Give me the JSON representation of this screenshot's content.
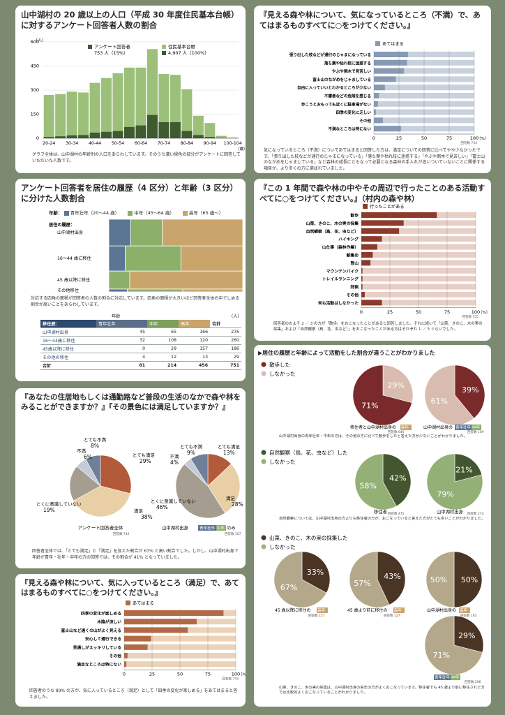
{
  "colors": {
    "blue": "#5b7693",
    "green": "#8cb06a",
    "tan": "#c9a56b",
    "dark_green": "#3f5a2f",
    "light_green": "#9cc07a",
    "brown_red": "#7a2a2a",
    "pink": "#d9bcb0",
    "rust": "#b25a3a",
    "cream": "#e8cfa5",
    "grey": "#a49d90",
    "light_blue_grey": "#c2cbd6",
    "slate": "#6f7f99",
    "bar_blue": "#8699b5",
    "bar_track": "#c8d1dd",
    "orange_bar": "#b26a46",
    "orange_track": "#ecd2b6",
    "brown_bar": "#8d3a2a",
    "brown_track": "#e8cfc6",
    "forest": "#44562f",
    "sage": "#93b077",
    "choc": "#4a3424",
    "khaki": "#b3a88a"
  },
  "p1": {
    "title": "山中湖村の 20 歳以上の人口（平成 30 年度住民基本台帳）に対するアンケート回答者人数の割合",
    "ylabel": "（人）",
    "xlabel": "（歳）",
    "legend_a": "アンケート回答者",
    "legend_a_val": "753 人（15%）",
    "legend_b": "住民基本台帳",
    "legend_b_val": "4,907 人（100%）",
    "note": "グラフ全体は、山中湖村の年齢別の人口をあらわしています。そのうち濃い緑色の部分がアンケートに回答していただいた人数です。"
  },
  "p2": {
    "title": "『見える森や林について、気になっているところ（不満）で、あてはまるものすべてに○をつけてください。』",
    "legend": "あてはまる",
    "axis_unit": "（%）",
    "respondents": "回答数 734",
    "note": "気になっているところ（不満）についてあてはまると回答した方は、満足についての回答に比べてやや少なかったです。「張り出した枝などが通行のじゃまになっている」「落ち葉や枯れ枝に迷惑する」「やぶや倒木で見苦しい」「富士山のながめをじゃましている」など森林の成長にともなって必要となる森林の手入れが追いついていないことに関係する項目が、より多くの方に選ばれていました。"
  },
  "p3": {
    "title": "アンケート回答者を居住の履歴（4 区分）と年齢（3 区分）に分けた人数割合",
    "age_label": "年齢：",
    "age_young": "青年壮年（20〜44 歳）",
    "age_mid": "中年（45〜64 歳）",
    "age_old": "高年（65 歳〜）",
    "res_label": "居住の履歴：",
    "rows": [
      "山中湖村出身",
      "16〜44 歳に移住",
      "45 歳以降に移住",
      "その他移住"
    ],
    "note": "対応する四角の面積が回答者の人数の割合に対応しています。四角の面積が大きいほど回答者全体の中でしめる割合が高いことをあらわしています。",
    "table": {
      "age_head": "年齢",
      "unit": "（人）",
      "res_head": "移住歴：",
      "cols": [
        "青年壮年",
        "中年",
        "高年",
        "合計"
      ],
      "rows": [
        {
          "name": "山中湖村出身",
          "v": [
            "45",
            "65",
            "166",
            "276"
          ]
        },
        {
          "name": "16〜44歳に移住",
          "v": [
            "32",
            "108",
            "120",
            "260"
          ]
        },
        {
          "name": "45歳以降に移住",
          "v": [
            "0",
            "29",
            "157",
            "186"
          ]
        },
        {
          "name": "その他の移住",
          "v": [
            "4",
            "12",
            "13",
            "29"
          ]
        },
        {
          "name": "合計",
          "v": [
            "81",
            "214",
            "456",
            "751"
          ]
        }
      ]
    }
  },
  "p4": {
    "title": "『この 1 年間で森や林の中やその周辺で行ったことのある活動すべてに○をつけてください。』（村内の森や林）",
    "legend": "行ったことがある",
    "axis_unit": "（%）",
    "respondents": "回答数 755",
    "note": "回答者のおよそ 2 ／ 3 の方が「散歩」をおこなったことがあると回答しました。それに続いて「山菜、きのこ、木の実の採集」および「自然観察（鳥、花、虫など）」をおこなったことがある方はそれぞれ 1 ／ 3 ぐらいでした。"
  },
  "p5": {
    "title": "▶居住の履歴と年齢によって活動をした割合が違うことがわかりました",
    "g1_a": "散歩した",
    "g1_b": "しなかった",
    "g2_a": "自然観察（鳥、花、虫など）した",
    "g2_b": "しなかった",
    "g3_a": "山菜、きのこ、木の実の採集した",
    "g3_b": "しなかった",
    "pie1_pre": "移住者と山中湖村出身の",
    "pie1_badge": "高年",
    "pie1_n": "回答数 640",
    "pie2_pre": "山中湖村出身の",
    "pie2_badge1": "青年壮年",
    "pie2_badge2": "中年",
    "pie2_n": "回答数 109",
    "note1": "山中湖村出身の青年壮年・中年の方は、その他の方に比べて散歩をしたと答えた方が少ないことがわかりました。",
    "pie3_label": "移住者",
    "pie3_n": "回答数 475",
    "pie4_label": "山中湖村出身",
    "pie4_n": "回答数 274",
    "note2": "自然観察については、山中湖村出身の方よりも移住者の方が、おこなっていると答えた方がとても多いことがわかりました。",
    "pie5_pre": "45 歳以降に移住の",
    "pie5_badge": "高年",
    "pie5_n": "回答数 157",
    "pie6_pre": "45 歳より前に移住の",
    "pie6_badge": "高年",
    "pie6_n": "回答数 127",
    "pie7_pre": "山中湖村出身の",
    "pie7_badge": "高年",
    "pie7_n": "回答数 165",
    "pie8_badge1": "青年壮年",
    "pie8_badge2": "中年",
    "pie8_n": "回答数 296",
    "note3": "山菜、きのこ、木の実の採集は、山中湖村出身の高年の方がよくおこなっています。移住者でも 45 歳より前に移住された方では比較的よくおこなっていることがわかりました。"
  },
  "p6": {
    "title": "『あなたの住居地もしくは通勤路など普段の生活のなかで森や林をみることができますか？』『その景色には満足していますか？』",
    "pie1_caption": "アンケート回答者全体",
    "pie1_n": "回答数 742",
    "pie2_pre": "山中湖村出身",
    "pie2_badge1": "青年壮年",
    "pie2_badge2": "中年",
    "pie2_post": "のみ",
    "pie2_n": "回答数 107",
    "note": "回答者全体では、「とても満足」と「満足」を加えた割合が 67% と高い割合でした。しかし、山中湖村出身で年齢が青年・壮年・中年の方の回答では、その割合が 41% となっていました。"
  },
  "p7": {
    "title": "『見える森や林について、気に入っているところ（満足）で、あてはまるものすべてに○をつけてください。』",
    "legend": "あてはまる",
    "axis_unit": "（%）",
    "respondents": "回答数 743",
    "note": "回答者のうち 89% の方が、気に入っているところ（満足）として「四季の変化が楽しめる」をあてはまると答えました。"
  },
  "chart_data": [
    {
      "type": "bar",
      "title": "山中湖村の 20 歳以上の人口（平成 30 年度住民基本台帳）に対するアンケート回答者人数の割合",
      "xlabel": "（歳）",
      "ylabel": "（人）",
      "categories": [
        "20-24",
        "25-29",
        "30-34",
        "35-39",
        "40-44",
        "45-49",
        "50-54",
        "55-59",
        "60-64",
        "65-69",
        "70-74",
        "75-79",
        "80-84",
        "85-89",
        "90-94",
        "95-99",
        "100-104"
      ],
      "tick_labels": [
        "20-24",
        "30-34",
        "40-44",
        "50-54",
        "60-64",
        "70-74",
        "80-84",
        "90-94",
        "100-104"
      ],
      "y_ticks": [
        0,
        150,
        300,
        450,
        600
      ],
      "ylim": [
        0,
        600
      ],
      "series": [
        {
          "name": "住民基本台帳",
          "values": [
            270,
            275,
            290,
            285,
            345,
            375,
            405,
            440,
            440,
            555,
            400,
            395,
            305,
            140,
            95,
            15,
            5
          ]
        },
        {
          "name": "アンケート回答者",
          "values": [
            8,
            12,
            18,
            20,
            35,
            40,
            45,
            70,
            80,
            145,
            100,
            100,
            45,
            20,
            8,
            2,
            0
          ]
        }
      ]
    },
    {
      "type": "bar",
      "orientation": "horizontal",
      "categories": [
        "張り出した枝などが通行のじゃまになっている",
        "落ち葉や枯れ枝に迷惑する",
        "やぶや倒木で見苦しい",
        "富士山のながめをじゃましている",
        "自由に入っていいとわかるところが少ない",
        "不審者などの危険を感じる",
        "歩こうとおもっても近くに駐車場がない",
        "四季の変化に乏しい",
        "その他",
        "不満なところは特にない"
      ],
      "series": [
        {
          "name": "あてはまる",
          "values": [
            34,
            33,
            30,
            22,
            11,
            5,
            4,
            2,
            9,
            27
          ]
        }
      ],
      "x_ticks": [
        0,
        25,
        50,
        75,
        100
      ],
      "xlim": [
        0,
        100
      ],
      "unit": "%"
    },
    {
      "type": "bar",
      "orientation": "horizontal",
      "categories": [
        "散歩",
        "山菜、きのこ、木の実の採集",
        "自然観察（鳥、花、虫など）",
        "ハイキング",
        "山仕事（森林作業）",
        "薪集め",
        "登山",
        "マウンテンバイク",
        "トレイルランニング",
        "狩猟",
        "その他",
        "何も活動はしなかった"
      ],
      "series": [
        {
          "name": "行ったことがある",
          "values": [
            66,
            37,
            33,
            18,
            14,
            10,
            8,
            1,
            1,
            1,
            3,
            18
          ]
        }
      ],
      "x_ticks": [
        0,
        25,
        50,
        75,
        100
      ],
      "xlim": [
        0,
        100
      ],
      "unit": "%"
    },
    {
      "type": "bar",
      "orientation": "horizontal",
      "categories": [
        "四季の変化が楽しめる",
        "木陰が涼しい",
        "富士山など遠くの山がよく見える",
        "安心して通行できる",
        "見通しがスッキリしている",
        "その他",
        "満足なところは特にない"
      ],
      "series": [
        {
          "name": "あてはまる",
          "values": [
            89,
            65,
            57,
            24,
            21,
            3,
            2
          ]
        }
      ],
      "x_ticks": [
        0,
        25,
        50,
        75,
        100
      ],
      "xlim": [
        0,
        100
      ],
      "unit": "%"
    },
    {
      "type": "pie",
      "caption": "アンケート回答者全体",
      "slices": [
        {
          "label": "とても満足",
          "value": 29
        },
        {
          "label": "満足",
          "value": 38
        },
        {
          "label": "とくに意識していない",
          "value": 19
        },
        {
          "label": "不満",
          "value": 6
        },
        {
          "label": "とても不満",
          "value": 8
        }
      ]
    },
    {
      "type": "pie",
      "caption": "山中湖村出身 青年壮年・中年のみ",
      "slices": [
        {
          "label": "とても満足",
          "value": 13
        },
        {
          "label": "満足",
          "value": 28
        },
        {
          "label": "とくに意識していない",
          "value": 46
        },
        {
          "label": "不満",
          "value": 4
        },
        {
          "label": "とても不満",
          "value": 9
        }
      ]
    },
    {
      "type": "pie",
      "caption": "移住者と山中湖村出身の高年",
      "slices": [
        {
          "label": "散歩した",
          "value": 71
        },
        {
          "label": "しなかった",
          "value": 29
        }
      ]
    },
    {
      "type": "pie",
      "caption": "山中湖村出身の青年壮年・中年",
      "slices": [
        {
          "label": "散歩した",
          "value": 39
        },
        {
          "label": "しなかった",
          "value": 61
        }
      ]
    },
    {
      "type": "pie",
      "caption": "移住者",
      "slices": [
        {
          "label": "自然観察（鳥、花、虫など）した",
          "value": 42
        },
        {
          "label": "しなかった",
          "value": 58
        }
      ]
    },
    {
      "type": "pie",
      "caption": "山中湖村出身",
      "slices": [
        {
          "label": "自然観察（鳥、花、虫など）した",
          "value": 21
        },
        {
          "label": "しなかった",
          "value": 79
        }
      ]
    },
    {
      "type": "pie",
      "caption": "45 歳以降に移住の高年",
      "slices": [
        {
          "label": "山菜、きのこ、木の実の採集した",
          "value": 33
        },
        {
          "label": "しなかった",
          "value": 67
        }
      ]
    },
    {
      "type": "pie",
      "caption": "45 歳より前に移住の高年",
      "slices": [
        {
          "label": "山菜、きのこ、木の実の採集した",
          "value": 43
        },
        {
          "label": "しなかった",
          "value": 57
        }
      ]
    },
    {
      "type": "pie",
      "caption": "山中湖村出身の高年",
      "slices": [
        {
          "label": "山菜、きのこ、木の実の採集した",
          "value": 50
        },
        {
          "label": "しなかった",
          "value": 50
        }
      ]
    },
    {
      "type": "pie",
      "caption": "青年壮年・中年",
      "slices": [
        {
          "label": "山菜、きのこ、木の実の採集した",
          "value": 29
        },
        {
          "label": "しなかった",
          "value": 71
        }
      ]
    }
  ]
}
